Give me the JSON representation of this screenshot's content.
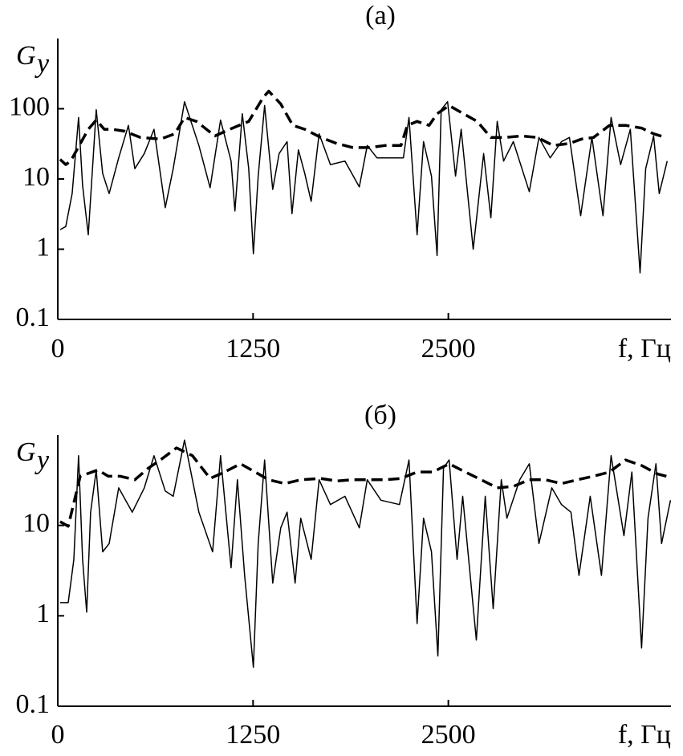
{
  "chart_data": [
    {
      "type": "line",
      "title": "(a)",
      "ylabel": "G",
      "ylabel_subscript": "y",
      "xlabel": "f, Гц",
      "yscale": "log",
      "xlim": [
        0,
        3925
      ],
      "ylim": [
        0.1,
        1000
      ],
      "xticks": [
        0,
        1250,
        2500
      ],
      "yticks": [
        0.1,
        1,
        10,
        100
      ],
      "series": [
        {
          "color": "#000000",
          "style": "solid",
          "x": [
            15,
            51,
            92,
            133,
            159,
            195,
            246,
            287,
            329,
            390,
            452,
            493,
            554,
            616,
            688,
            739,
            811,
            903,
            975,
            1042,
            1109,
            1134,
            1181,
            1222,
            1252,
            1283,
            1324,
            1376,
            1417,
            1468,
            1499,
            1540,
            1581,
            1622,
            1673,
            1745,
            1838,
            1930,
            1981,
            2043,
            2146,
            2212,
            2248,
            2300,
            2341,
            2392,
            2428,
            2454,
            2495,
            2546,
            2582,
            2659,
            2726,
            2772,
            2813,
            2854,
            2916,
            3018,
            3080,
            3152,
            3224,
            3275,
            3347,
            3419,
            3490,
            3542,
            3603,
            3665,
            3727,
            3763,
            3814,
            3850,
            3901
          ],
          "values": [
            1.9,
            2.1,
            6.2,
            75,
            8.1,
            1.6,
            97,
            12,
            6.2,
            20,
            58,
            14,
            23,
            51,
            3.9,
            14,
            126,
            30,
            7.5,
            69,
            18,
            3.5,
            85,
            14,
            0.86,
            11,
            111,
            7.1,
            23,
            34,
            3.2,
            26,
            12,
            4.8,
            44,
            16,
            18,
            7.7,
            30,
            20,
            20,
            20,
            75,
            1.6,
            34,
            11,
            0.81,
            97,
            126,
            11,
            51,
            1.0,
            23,
            2.8,
            66,
            18,
            34,
            6.6,
            39,
            20,
            34,
            39,
            3.0,
            39,
            3.0,
            75,
            16,
            51,
            0.46,
            14,
            41,
            6.2,
            18
          ]
        },
        {
          "color": "#000000",
          "style": "dashed",
          "x": [
            15,
            51,
            82,
            195,
            246,
            298,
            349,
            426,
            529,
            657,
            749,
            811,
            888,
            1006,
            1119,
            1222,
            1314,
            1350,
            1427,
            1504,
            1581,
            1684,
            1786,
            1889,
            1992,
            2094,
            2197,
            2238,
            2300,
            2377,
            2428,
            2505,
            2597,
            2685,
            2772,
            2864,
            2967,
            3070,
            3172,
            3275,
            3352,
            3429,
            3532,
            3634,
            3737,
            3814,
            3891
          ],
          "values": [
            19,
            16,
            18,
            51,
            69,
            51,
            51,
            48,
            39,
            37,
            44,
            75,
            66,
            41,
            53,
            66,
            144,
            178,
            117,
            58,
            51,
            39,
            32,
            28,
            28,
            30,
            30,
            58,
            66,
            58,
            85,
            111,
            85,
            66,
            39,
            39,
            41,
            39,
            30,
            32,
            37,
            39,
            58,
            58,
            53,
            44,
            39
          ]
        }
      ]
    },
    {
      "type": "line",
      "title": "(б)",
      "ylabel": "G",
      "ylabel_subscript": "y",
      "xlabel": "f, Гц",
      "yscale": "log",
      "xlim": [
        0,
        3925
      ],
      "ylim": [
        0.1,
        100
      ],
      "xticks": [
        0,
        1250,
        2500
      ],
      "yticks": [
        0.1,
        1,
        10
      ],
      "series": [
        {
          "color": "#000000",
          "style": "solid",
          "x": [
            15,
            67,
            103,
            133,
            159,
            185,
            210,
            246,
            287,
            329,
            390,
            477,
            554,
            616,
            688,
            739,
            811,
            903,
            991,
            1042,
            1109,
            1150,
            1196,
            1252,
            1283,
            1324,
            1376,
            1427,
            1468,
            1519,
            1555,
            1622,
            1673,
            1745,
            1838,
            1930,
            1981,
            2069,
            2187,
            2248,
            2300,
            2341,
            2392,
            2433,
            2469,
            2505,
            2556,
            2592,
            2679,
            2736,
            2787,
            2839,
            2875,
            2957,
            3018,
            3080,
            3162,
            3224,
            3285,
            3336,
            3408,
            3480,
            3542,
            3624,
            3675,
            3737,
            3778,
            3829,
            3865,
            3922
          ],
          "values": [
            1.4,
            1.4,
            4.2,
            59,
            4.2,
            1.1,
            14,
            41,
            5.1,
            6.3,
            26,
            14,
            26,
            59,
            24,
            21,
            88,
            14,
            5.1,
            59,
            3.4,
            32,
            2.8,
            0.27,
            6.3,
            53,
            2.3,
            9.4,
            14,
            2.3,
            12,
            4.2,
            32,
            17,
            21,
            9.4,
            32,
            19,
            17,
            53,
            0.82,
            12,
            5.1,
            0.36,
            43,
            53,
            4.2,
            21,
            0.54,
            21,
            1.2,
            32,
            12,
            32,
            48,
            6.3,
            26,
            17,
            14,
            2.8,
            21,
            2.8,
            59,
            7.7,
            39,
            0.44,
            12,
            48,
            6.3,
            19
          ]
        },
        {
          "color": "#000000",
          "style": "dashed",
          "x": [
            15,
            67,
            144,
            257,
            323,
            400,
            493,
            580,
            657,
            760,
            862,
            975,
            1068,
            1170,
            1263,
            1350,
            1453,
            1555,
            1684,
            1786,
            1889,
            1992,
            2094,
            2197,
            2300,
            2402,
            2505,
            2608,
            2710,
            2813,
            2916,
            3018,
            3121,
            3224,
            3326,
            3429,
            3532,
            3634,
            3737,
            3839,
            3922
          ],
          "values": [
            11,
            9.8,
            35,
            41,
            35,
            35,
            32,
            43,
            53,
            72,
            59,
            33,
            39,
            48,
            39,
            32,
            29,
            32,
            33,
            31,
            32,
            32,
            32,
            33,
            39,
            39,
            48,
            39,
            32,
            26,
            27,
            32,
            32,
            29,
            32,
            35,
            39,
            53,
            46,
            37,
            34
          ]
        }
      ]
    }
  ]
}
